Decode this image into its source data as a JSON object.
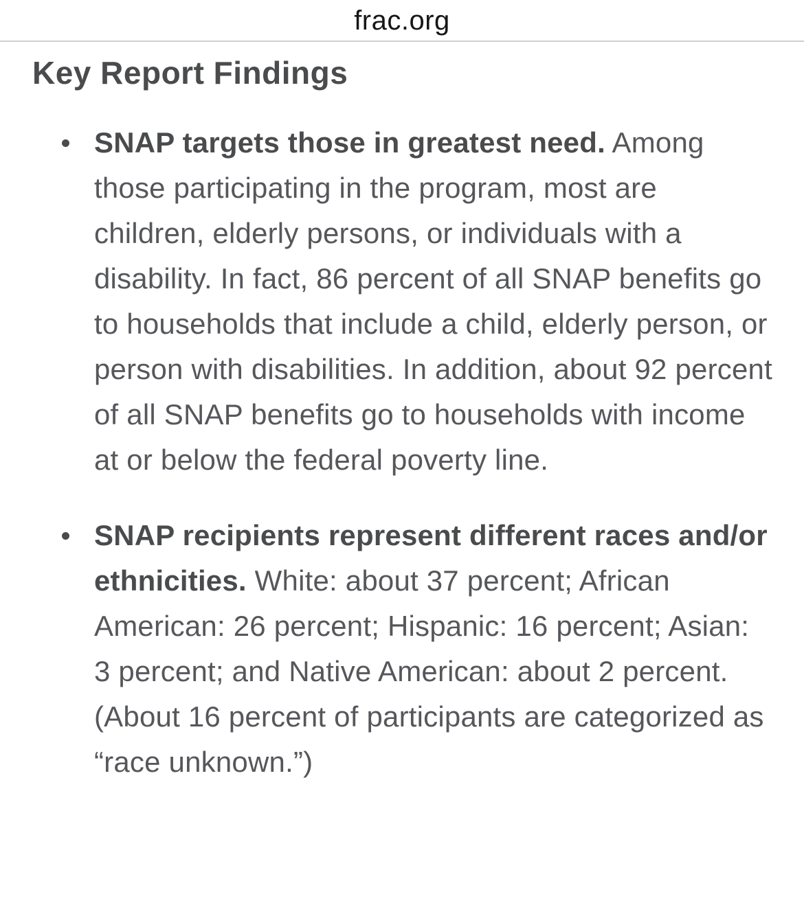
{
  "browser": {
    "site_label": "frac.org"
  },
  "article": {
    "heading": "Key Report Findings",
    "bullets": [
      {
        "bold": "SNAP targets those in greatest need.",
        "rest": "Among those participating in the program, most are children, elderly persons, or individuals with a disability. In fact, 86 percent of all SNAP benefits go to households that include a child, elderly person, or person with disabilities. In addition, about 92 percent of all SNAP benefits go to households with income at or below the federal poverty line."
      },
      {
        "bold": "SNAP recipients represent different races and/or ethnicities.",
        "rest": "White: about 37 percent; African American: 26 percent; Hispanic: 16 percent; Asian: 3 percent; and Native American: about 2 percent. (About 16 percent of participants are categorized as “race unknown.”)"
      }
    ]
  },
  "colors": {
    "heading_text": "#4a4b4d",
    "body_text": "#56575b",
    "site_label_text": "#161618",
    "divider": "#cfcfcf",
    "background": "#ffffff"
  }
}
